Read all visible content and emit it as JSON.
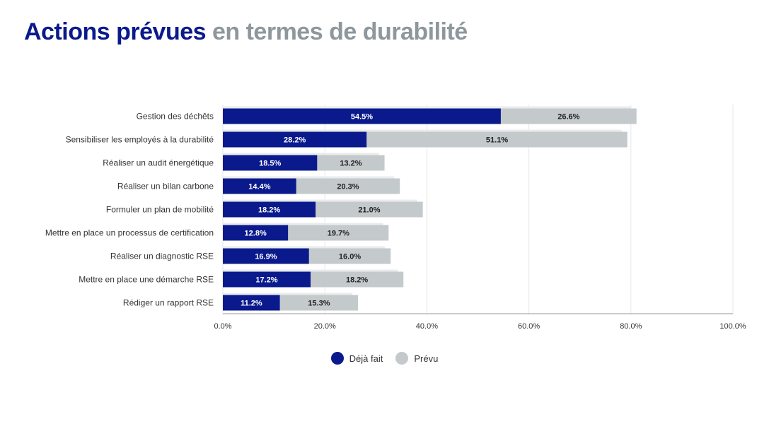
{
  "title": {
    "part1": "Actions prévues",
    "part2": "en termes de durabilité"
  },
  "colors": {
    "done": "#0a1a8c",
    "planned": "#c4c9cb",
    "grid": "#e6e6e6",
    "axis": "#999999"
  },
  "chart_data": {
    "type": "bar",
    "orientation": "horizontal",
    "stacked": true,
    "categories": [
      "Gestion des déchêts",
      "Sensibiliser les employés à la durabilité",
      "Réaliser un audit énergétique",
      "Réaliser un bilan carbone",
      "Formuler un plan de mobilité",
      "Mettre en place un processus de certification",
      "Réaliser un diagnostic RSE",
      "Mettre en place une démarche RSE",
      "Rédiger un rapport RSE"
    ],
    "series": [
      {
        "name": "Déjà fait",
        "values": [
          54.5,
          28.2,
          18.5,
          14.4,
          18.2,
          12.8,
          16.9,
          17.2,
          11.2
        ],
        "labels": [
          "54.5%",
          "28.2%",
          "18.5%",
          "14.4%",
          "18.2%",
          "12.8%",
          "16.9%",
          "17.2%",
          "11.2%"
        ]
      },
      {
        "name": "Prévu",
        "values": [
          26.6,
          51.1,
          13.2,
          20.3,
          21.0,
          19.7,
          16.0,
          18.2,
          15.3
        ],
        "labels": [
          "26.6%",
          "51.1%",
          "13.2%",
          "20.3%",
          "21.0%",
          "19.7%",
          "16.0%",
          "18.2%",
          "15.3%"
        ]
      }
    ],
    "xlim": [
      0,
      100
    ],
    "xticks": [
      0,
      20,
      40,
      60,
      80,
      100
    ],
    "xtick_labels": [
      "0.0%",
      "20.0%",
      "40.0%",
      "60.0%",
      "80.0%",
      "100.0%"
    ],
    "grid": true,
    "legend_position": "bottom"
  }
}
